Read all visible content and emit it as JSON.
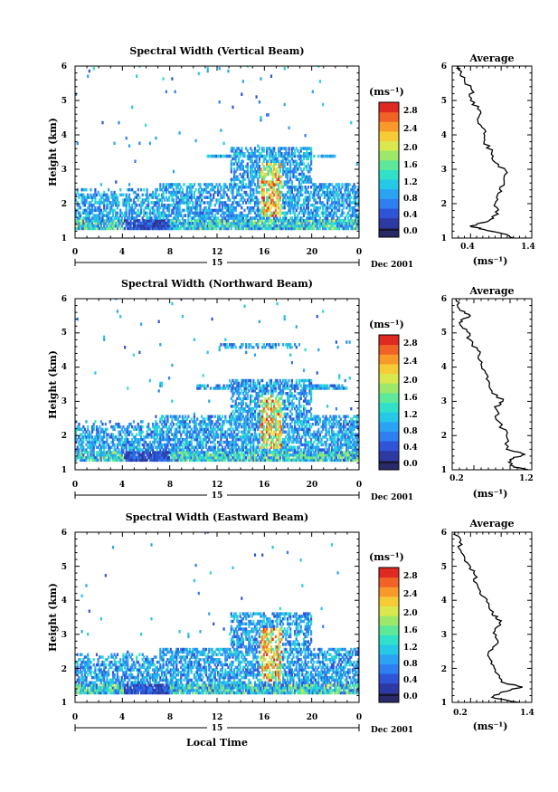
{
  "figure": {
    "date_label": "Dec 2001",
    "day_label": "15",
    "bottom_xlabel": "Local Time"
  },
  "chart_data": [
    {
      "type": "heatmap",
      "title": "Spectral Width (Vertical Beam)",
      "ylabel": "Height (km)",
      "xlim": [
        0,
        24
      ],
      "ylim": [
        1,
        6
      ],
      "x_ticks": [
        "0",
        "4",
        "8",
        "12",
        "16",
        "20",
        "0"
      ],
      "y_ticks": [
        "1",
        "2",
        "3",
        "4",
        "5",
        "6"
      ],
      "colorbar": {
        "unit": "(ms⁻¹)",
        "range": [
          0,
          3.0
        ],
        "ticks": [
          "0.0",
          "0.4",
          "0.8",
          "1.2",
          "1.6",
          "2.0",
          "2.4",
          "2.8"
        ]
      },
      "profile": {
        "title": "Average",
        "xlabel": "(ms⁻¹)",
        "xlim": [
          0.2,
          1.5
        ],
        "ylim": [
          1,
          6
        ],
        "x_ticks": [
          "0.4",
          "1.4"
        ],
        "y_ticks": [
          "1",
          "2",
          "3",
          "4",
          "5",
          "6"
        ],
        "points": [
          [
            1.2,
            1.0
          ],
          [
            1.1,
            1.1
          ],
          [
            0.72,
            1.25
          ],
          [
            0.5,
            1.35
          ],
          [
            0.8,
            1.5
          ],
          [
            0.95,
            1.7
          ],
          [
            0.9,
            2.0
          ],
          [
            0.95,
            2.3
          ],
          [
            1.05,
            2.6
          ],
          [
            1.1,
            2.9
          ],
          [
            0.9,
            3.2
          ],
          [
            0.85,
            3.5
          ],
          [
            0.72,
            3.8
          ],
          [
            0.75,
            4.1
          ],
          [
            0.62,
            4.4
          ],
          [
            0.66,
            4.7
          ],
          [
            0.5,
            5.0
          ],
          [
            0.52,
            5.3
          ],
          [
            0.4,
            5.6
          ],
          [
            0.3,
            5.9
          ],
          [
            0.3,
            6.0
          ]
        ]
      }
    },
    {
      "type": "heatmap",
      "title": "Spectral Width (Northward Beam)",
      "ylabel": "Height (km)",
      "xlim": [
        0,
        24
      ],
      "ylim": [
        1,
        6
      ],
      "x_ticks": [
        "0",
        "4",
        "8",
        "12",
        "16",
        "20",
        "0"
      ],
      "y_ticks": [
        "1",
        "2",
        "3",
        "4",
        "5",
        "6"
      ],
      "colorbar": {
        "unit": "(ms⁻¹)",
        "range": [
          0,
          3.0
        ],
        "ticks": [
          "0.0",
          "0.4",
          "0.8",
          "1.2",
          "1.6",
          "2.0",
          "2.4",
          "2.8"
        ]
      },
      "profile": {
        "title": "Average",
        "xlabel": "(ms⁻¹)",
        "xlim": [
          0.2,
          1.3
        ],
        "ylim": [
          1,
          6
        ],
        "x_ticks": [
          "0.2",
          "1.2"
        ],
        "y_ticks": [
          "1",
          "2",
          "3",
          "4",
          "5",
          "6"
        ],
        "points": [
          [
            1.25,
            1.0
          ],
          [
            1.05,
            1.1
          ],
          [
            1.0,
            1.3
          ],
          [
            1.2,
            1.45
          ],
          [
            0.95,
            1.6
          ],
          [
            0.95,
            2.0
          ],
          [
            0.85,
            2.4
          ],
          [
            0.8,
            2.8
          ],
          [
            0.9,
            3.0
          ],
          [
            0.75,
            3.3
          ],
          [
            0.7,
            3.6
          ],
          [
            0.65,
            3.9
          ],
          [
            0.58,
            4.2
          ],
          [
            0.55,
            4.5
          ],
          [
            0.45,
            4.8
          ],
          [
            0.4,
            5.1
          ],
          [
            0.3,
            5.3
          ],
          [
            0.45,
            5.5
          ],
          [
            0.3,
            5.7
          ],
          [
            0.25,
            6.0
          ]
        ]
      }
    },
    {
      "type": "heatmap",
      "title": "Spectral Width (Eastward Beam)",
      "ylabel": "Height (km)",
      "xlim": [
        0,
        24
      ],
      "ylim": [
        1,
        6
      ],
      "x_ticks": [
        "0",
        "4",
        "8",
        "12",
        "16",
        "20",
        "0"
      ],
      "y_ticks": [
        "1",
        "2",
        "3",
        "4",
        "5",
        "6"
      ],
      "colorbar": {
        "unit": "(ms⁻¹)",
        "range": [
          0,
          3.0
        ],
        "ticks": [
          "0.0",
          "0.4",
          "0.8",
          "1.2",
          "1.6",
          "2.0",
          "2.4",
          "2.8"
        ]
      },
      "profile": {
        "title": "Average",
        "xlabel": "(ms⁻¹)",
        "xlim": [
          0.2,
          1.5
        ],
        "ylim": [
          1,
          6
        ],
        "x_ticks": [
          "0.2",
          "1.4"
        ],
        "y_ticks": [
          "1",
          "2",
          "3",
          "4",
          "5",
          "6"
        ],
        "points": [
          [
            1.3,
            1.0
          ],
          [
            0.85,
            1.15
          ],
          [
            1.0,
            1.3
          ],
          [
            1.35,
            1.45
          ],
          [
            1.0,
            1.6
          ],
          [
            0.9,
            1.9
          ],
          [
            0.85,
            2.2
          ],
          [
            0.8,
            2.5
          ],
          [
            0.95,
            2.8
          ],
          [
            0.9,
            3.1
          ],
          [
            1.0,
            3.4
          ],
          [
            0.85,
            3.6
          ],
          [
            0.8,
            3.9
          ],
          [
            0.65,
            4.2
          ],
          [
            0.6,
            4.5
          ],
          [
            0.55,
            4.8
          ],
          [
            0.45,
            5.1
          ],
          [
            0.35,
            5.4
          ],
          [
            0.32,
            5.7
          ],
          [
            0.25,
            6.0
          ]
        ]
      }
    }
  ]
}
